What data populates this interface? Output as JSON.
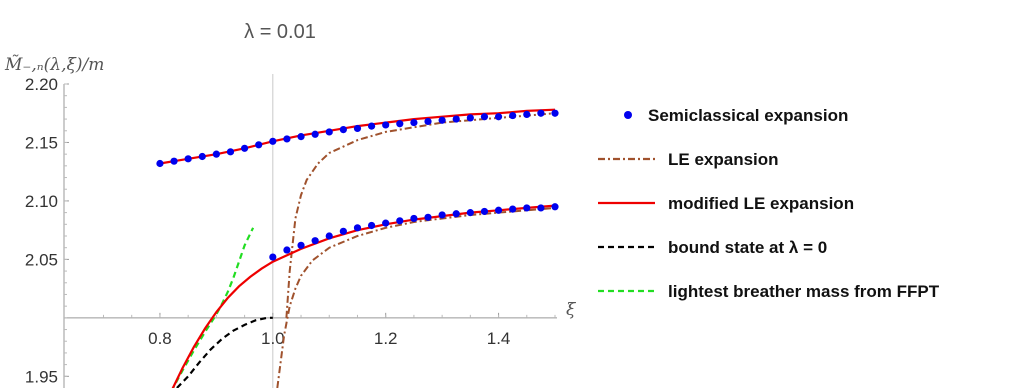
{
  "chart_data": {
    "type": "line",
    "title": "λ = 0.01",
    "ylabel": "M̃₋,ₙ(λ,ξ)/m",
    "xlabel": "ξ",
    "xlim": [
      0.63,
      1.5
    ],
    "ylim": [
      1.94,
      2.2
    ],
    "x_origin": 1.0,
    "y_origin": 2.0,
    "x_ticks": [
      "0.8",
      "1.0",
      "1.2",
      "1.4"
    ],
    "x_tick_values": [
      0.8,
      1.0,
      1.2,
      1.4
    ],
    "y_ticks": [
      "1.95",
      "2.05",
      "2.10",
      "2.15",
      "2.20"
    ],
    "y_tick_values": [
      1.95,
      2.05,
      2.1,
      2.15,
      2.2
    ],
    "legend_position": "right",
    "legend": [
      {
        "label": "Semiclassical expansion",
        "style": "dots",
        "color": "#0000ee"
      },
      {
        "label": "LE expansion",
        "style": "dashdot",
        "color": "#a0522d"
      },
      {
        "label": "modified LE expansion",
        "style": "solid",
        "color": "#ee0000"
      },
      {
        "label": "bound state at λ = 0",
        "style": "dashed",
        "color": "#000000"
      },
      {
        "label": "lightest breather mass from FFPT",
        "style": "dashed",
        "color": "#22dd22"
      }
    ],
    "series": [
      {
        "name": "Semiclassical expansion",
        "style": "dots",
        "color": "#0000ee",
        "points": [
          [
            0.8,
            2.132
          ],
          [
            0.825,
            2.134
          ],
          [
            0.85,
            2.136
          ],
          [
            0.875,
            2.138
          ],
          [
            0.9,
            2.14
          ],
          [
            0.925,
            2.142
          ],
          [
            0.95,
            2.145
          ],
          [
            0.975,
            2.148
          ],
          [
            1.0,
            2.151
          ],
          [
            1.025,
            2.153
          ],
          [
            1.05,
            2.155
          ],
          [
            1.075,
            2.157
          ],
          [
            1.1,
            2.159
          ],
          [
            1.125,
            2.161
          ],
          [
            1.15,
            2.162
          ],
          [
            1.175,
            2.164
          ],
          [
            1.2,
            2.165
          ],
          [
            1.225,
            2.166
          ],
          [
            1.25,
            2.167
          ],
          [
            1.275,
            2.168
          ],
          [
            1.3,
            2.169
          ],
          [
            1.325,
            2.17
          ],
          [
            1.35,
            2.171
          ],
          [
            1.375,
            2.172
          ],
          [
            1.4,
            2.172
          ],
          [
            1.425,
            2.173
          ],
          [
            1.45,
            2.174
          ],
          [
            1.475,
            2.175
          ],
          [
            1.5,
            2.175
          ],
          [
            1.0,
            2.052
          ],
          [
            1.025,
            2.058
          ],
          [
            1.05,
            2.062
          ],
          [
            1.075,
            2.066
          ],
          [
            1.1,
            2.07
          ],
          [
            1.125,
            2.074
          ],
          [
            1.15,
            2.077
          ],
          [
            1.175,
            2.079
          ],
          [
            1.2,
            2.081
          ],
          [
            1.225,
            2.083
          ],
          [
            1.25,
            2.085
          ],
          [
            1.275,
            2.086
          ],
          [
            1.3,
            2.088
          ],
          [
            1.325,
            2.089
          ],
          [
            1.35,
            2.09
          ],
          [
            1.375,
            2.091
          ],
          [
            1.4,
            2.092
          ],
          [
            1.425,
            2.093
          ],
          [
            1.45,
            2.094
          ],
          [
            1.475,
            2.094
          ],
          [
            1.5,
            2.095
          ]
        ]
      },
      {
        "name": "modified LE expansion",
        "style": "solid",
        "color": "#ee0000",
        "segments": [
          [
            [
              0.8,
              2.132
            ],
            [
              0.85,
              2.136
            ],
            [
              0.9,
              2.14
            ],
            [
              0.95,
              2.145
            ],
            [
              1.0,
              2.151
            ],
            [
              1.05,
              2.156
            ],
            [
              1.1,
              2.16
            ],
            [
              1.15,
              2.164
            ],
            [
              1.2,
              2.167
            ],
            [
              1.25,
              2.17
            ],
            [
              1.3,
              2.172
            ],
            [
              1.35,
              2.174
            ],
            [
              1.4,
              2.175
            ],
            [
              1.45,
              2.177
            ],
            [
              1.5,
              2.178
            ]
          ],
          [
            [
              0.82,
              1.937
            ],
            [
              0.84,
              1.957
            ],
            [
              0.86,
              1.975
            ],
            [
              0.88,
              1.991
            ],
            [
              0.9,
              2.005
            ],
            [
              0.92,
              2.017
            ],
            [
              0.94,
              2.027
            ],
            [
              0.96,
              2.035
            ],
            [
              0.98,
              2.042
            ],
            [
              1.0,
              2.048
            ],
            [
              1.05,
              2.059
            ],
            [
              1.1,
              2.068
            ],
            [
              1.15,
              2.075
            ],
            [
              1.2,
              2.08
            ],
            [
              1.25,
              2.084
            ],
            [
              1.3,
              2.087
            ],
            [
              1.35,
              2.09
            ],
            [
              1.4,
              2.092
            ],
            [
              1.45,
              2.094
            ],
            [
              1.5,
              2.096
            ]
          ]
        ]
      },
      {
        "name": "LE expansion",
        "style": "dashdot",
        "color": "#a0522d",
        "segments": [
          [
            [
              1.024,
              2.0
            ],
            [
              1.03,
              2.04
            ],
            [
              1.04,
              2.085
            ],
            [
              1.05,
              2.105
            ],
            [
              1.06,
              2.118
            ],
            [
              1.08,
              2.132
            ],
            [
              1.1,
              2.141
            ],
            [
              1.15,
              2.152
            ],
            [
              1.2,
              2.159
            ],
            [
              1.25,
              2.163
            ],
            [
              1.3,
              2.167
            ],
            [
              1.35,
              2.169
            ],
            [
              1.4,
              2.171
            ],
            [
              1.45,
              2.173
            ],
            [
              1.5,
              2.175
            ]
          ],
          [
            [
              1.008,
              1.94
            ],
            [
              1.02,
              1.985
            ],
            [
              1.03,
              2.01
            ],
            [
              1.04,
              2.025
            ],
            [
              1.05,
              2.036
            ],
            [
              1.07,
              2.049
            ],
            [
              1.1,
              2.06
            ],
            [
              1.15,
              2.07
            ],
            [
              1.2,
              2.077
            ],
            [
              1.25,
              2.082
            ],
            [
              1.3,
              2.085
            ],
            [
              1.35,
              2.088
            ],
            [
              1.4,
              2.09
            ],
            [
              1.45,
              2.092
            ],
            [
              1.5,
              2.094
            ]
          ]
        ]
      },
      {
        "name": "bound state at λ = 0",
        "style": "dashed",
        "color": "#000000",
        "points": [
          [
            0.83,
            1.94
          ],
          [
            0.85,
            1.95
          ],
          [
            0.87,
            1.962
          ],
          [
            0.89,
            1.973
          ],
          [
            0.91,
            1.982
          ],
          [
            0.93,
            1.989
          ],
          [
            0.95,
            1.994
          ],
          [
            0.97,
            1.998
          ],
          [
            0.99,
            2.0
          ],
          [
            1.0,
            2.0
          ]
        ]
      },
      {
        "name": "lightest breather mass from FFPT",
        "style": "dashed",
        "color": "#22dd22",
        "points": [
          [
            0.82,
            1.937
          ],
          [
            0.84,
            1.955
          ],
          [
            0.86,
            1.972
          ],
          [
            0.88,
            1.988
          ],
          [
            0.9,
            2.003
          ],
          [
            0.91,
            2.012
          ],
          [
            0.92,
            2.022
          ],
          [
            0.93,
            2.034
          ],
          [
            0.94,
            2.048
          ],
          [
            0.95,
            2.062
          ],
          [
            0.965,
            2.077
          ]
        ]
      }
    ]
  }
}
